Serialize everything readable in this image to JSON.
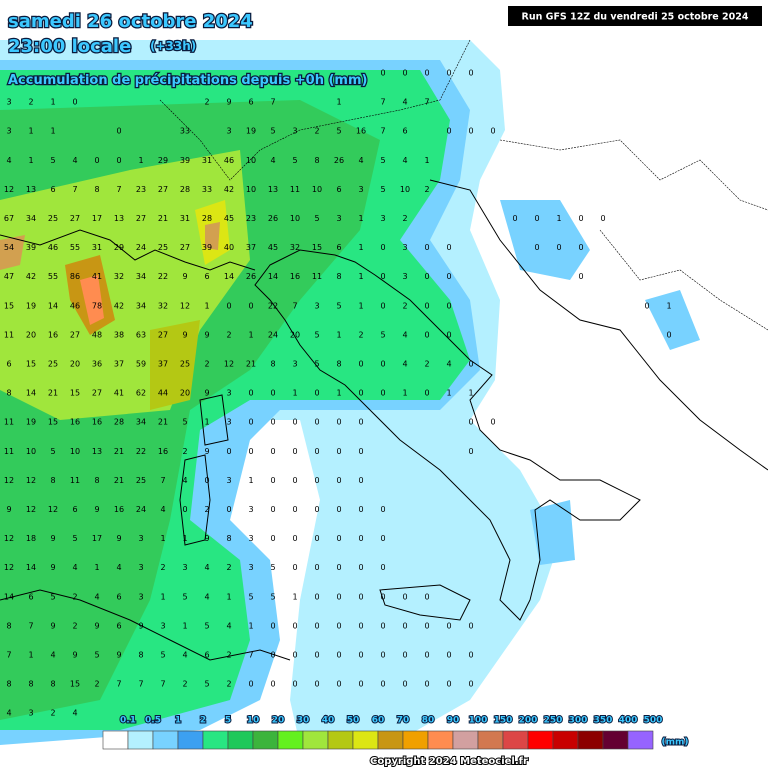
{
  "header": {
    "date": "samedi 26 octobre 2024",
    "time": "23:00 locale",
    "offset": "(+33h)",
    "subtitle": "Accumulation de précipitations depuis +0h (mm)"
  },
  "run": "Run GFS 12Z du vendredi 25 octobre 2024",
  "grid": {
    "rows": [
      [
        null,
        null,
        null,
        null,
        null,
        null,
        null,
        null,
        null,
        null,
        null,
        null,
        null,
        null,
        null,
        null,
        null,
        0,
        0,
        0,
        0,
        0
      ],
      [
        3,
        2,
        1,
        0,
        null,
        null,
        null,
        null,
        null,
        2,
        9,
        6,
        7,
        null,
        null,
        1,
        null,
        7,
        4,
        7
      ],
      [
        3,
        1,
        1,
        null,
        null,
        0,
        null,
        null,
        33,
        null,
        3,
        19,
        5,
        3,
        2,
        5,
        16,
        7,
        6,
        null,
        0,
        0,
        0
      ],
      [
        4,
        1,
        5,
        4,
        0,
        0,
        1,
        29,
        39,
        31,
        46,
        10,
        4,
        5,
        8,
        26,
        4,
        5,
        4,
        1
      ],
      [
        12,
        13,
        6,
        7,
        8,
        7,
        23,
        27,
        28,
        33,
        42,
        10,
        13,
        11,
        10,
        6,
        3,
        5,
        10,
        2
      ],
      [
        67,
        34,
        25,
        27,
        17,
        13,
        27,
        21,
        31,
        28,
        45,
        23,
        26,
        10,
        5,
        3,
        1,
        3,
        2,
        null,
        null,
        null,
        null,
        0,
        0,
        1,
        0,
        0
      ],
      [
        54,
        39,
        46,
        55,
        31,
        29,
        24,
        25,
        27,
        39,
        40,
        37,
        45,
        32,
        15,
        6,
        1,
        0,
        3,
        0,
        0,
        null,
        null,
        null,
        0,
        0,
        0
      ],
      [
        47,
        42,
        55,
        86,
        41,
        32,
        34,
        22,
        9,
        6,
        14,
        26,
        14,
        16,
        11,
        8,
        1,
        0,
        3,
        0,
        0,
        null,
        null,
        null,
        null,
        null,
        0
      ],
      [
        15,
        19,
        14,
        46,
        78,
        42,
        34,
        32,
        12,
        1,
        0,
        0,
        22,
        7,
        3,
        5,
        1,
        0,
        2,
        0,
        0,
        null,
        null,
        null,
        null,
        null,
        null,
        null,
        null,
        0,
        1
      ],
      [
        11,
        20,
        16,
        27,
        48,
        38,
        63,
        27,
        9,
        9,
        2,
        1,
        24,
        20,
        5,
        1,
        2,
        5,
        4,
        0,
        0,
        null,
        null,
        null,
        null,
        null,
        null,
        null,
        null,
        null,
        0
      ],
      [
        6,
        15,
        25,
        20,
        36,
        37,
        59,
        37,
        25,
        2,
        12,
        21,
        8,
        3,
        5,
        8,
        0,
        0,
        4,
        2,
        4,
        0
      ],
      [
        8,
        14,
        21,
        15,
        27,
        41,
        62,
        44,
        20,
        9,
        3,
        0,
        0,
        1,
        0,
        1,
        0,
        0,
        1,
        0,
        1,
        1
      ],
      [
        11,
        19,
        15,
        16,
        16,
        28,
        34,
        21,
        5,
        1,
        3,
        0,
        0,
        0,
        0,
        0,
        0,
        null,
        null,
        null,
        null,
        0,
        0
      ],
      [
        11,
        10,
        5,
        10,
        13,
        21,
        22,
        16,
        2,
        9,
        0,
        0,
        0,
        0,
        0,
        0,
        0,
        null,
        null,
        null,
        null,
        0
      ],
      [
        12,
        12,
        8,
        11,
        8,
        21,
        25,
        7,
        4,
        0,
        3,
        1,
        0,
        0,
        0,
        0,
        0
      ],
      [
        9,
        12,
        12,
        6,
        9,
        16,
        24,
        4,
        0,
        2,
        0,
        3,
        0,
        0,
        0,
        0,
        0,
        0
      ],
      [
        12,
        18,
        9,
        5,
        17,
        9,
        3,
        1,
        1,
        9,
        8,
        3,
        0,
        0,
        0,
        0,
        0,
        0
      ],
      [
        12,
        14,
        9,
        4,
        1,
        4,
        3,
        2,
        3,
        4,
        2,
        3,
        5,
        0,
        0,
        0,
        0,
        0
      ],
      [
        14,
        6,
        5,
        2,
        4,
        6,
        3,
        1,
        5,
        4,
        1,
        5,
        5,
        1,
        0,
        0,
        0,
        0,
        0,
        0
      ],
      [
        8,
        7,
        9,
        2,
        9,
        6,
        9,
        3,
        1,
        5,
        4,
        1,
        0,
        0,
        0,
        0,
        0,
        0,
        0,
        0,
        0,
        0
      ],
      [
        7,
        1,
        4,
        9,
        5,
        9,
        8,
        5,
        4,
        6,
        2,
        7,
        0,
        0,
        0,
        0,
        0,
        0,
        0,
        0,
        0,
        0
      ],
      [
        8,
        8,
        8,
        15,
        2,
        7,
        7,
        7,
        2,
        5,
        2,
        0,
        0,
        0,
        0,
        0,
        0,
        0,
        0,
        0,
        0,
        0
      ],
      [
        4,
        3,
        2,
        4
      ]
    ]
  },
  "legend": {
    "labels": [
      "0.1",
      "0.5",
      "1",
      "2",
      "5",
      "10",
      "20",
      "30",
      "40",
      "50",
      "60",
      "70",
      "80",
      "90",
      "100",
      "150",
      "200",
      "250",
      "300",
      "350",
      "400",
      "500"
    ],
    "colors": [
      "#ffffff",
      "#b4f0ff",
      "#78d2ff",
      "#3ca0f0",
      "#28e682",
      "#1ec85a",
      "#3cb43c",
      "#64f01e",
      "#a0e63c",
      "#b4c814",
      "#dce614",
      "#c89614",
      "#f0a000",
      "#ff8c50",
      "#d2a0a0",
      "#d27850",
      "#dc4646",
      "#ff0000",
      "#c80000",
      "#8c0000",
      "#640032",
      "#9664ff"
    ],
    "unit": "(mm)"
  },
  "copyright": "Copyright 2024 Meteociel.fr"
}
